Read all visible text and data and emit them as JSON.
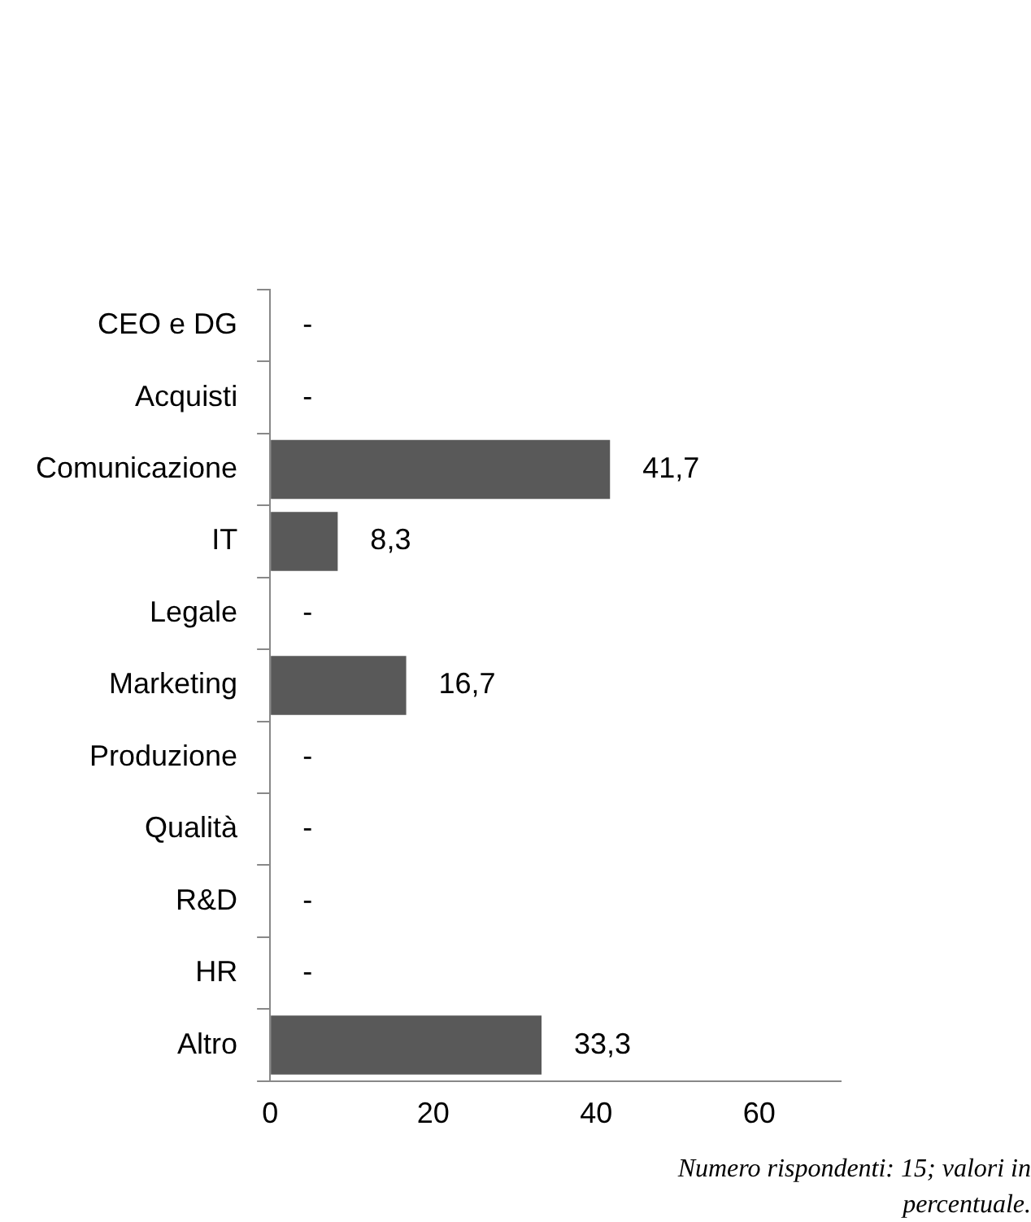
{
  "chart_data": {
    "type": "bar",
    "orientation": "horizontal",
    "categories": [
      "CEO e DG",
      "Acquisti",
      "Comunicazione",
      "IT",
      "Legale",
      "Marketing",
      "Produzione",
      "Qualità",
      "R&D",
      "HR",
      "Altro"
    ],
    "values": [
      0,
      0,
      41.7,
      8.3,
      0,
      16.7,
      0,
      0,
      0,
      0,
      33.3
    ],
    "value_labels": [
      "-",
      "-",
      "41,7",
      "8,3",
      "-",
      "16,7",
      "-",
      "-",
      "-",
      "-",
      "33,3"
    ],
    "color": "#595959",
    "xlim": [
      0,
      70
    ],
    "xticks": [
      0,
      20,
      40,
      60
    ],
    "grid": false,
    "legend": false,
    "annotations": [
      "Numero rispondenti: 15; valori in percentuale."
    ]
  }
}
